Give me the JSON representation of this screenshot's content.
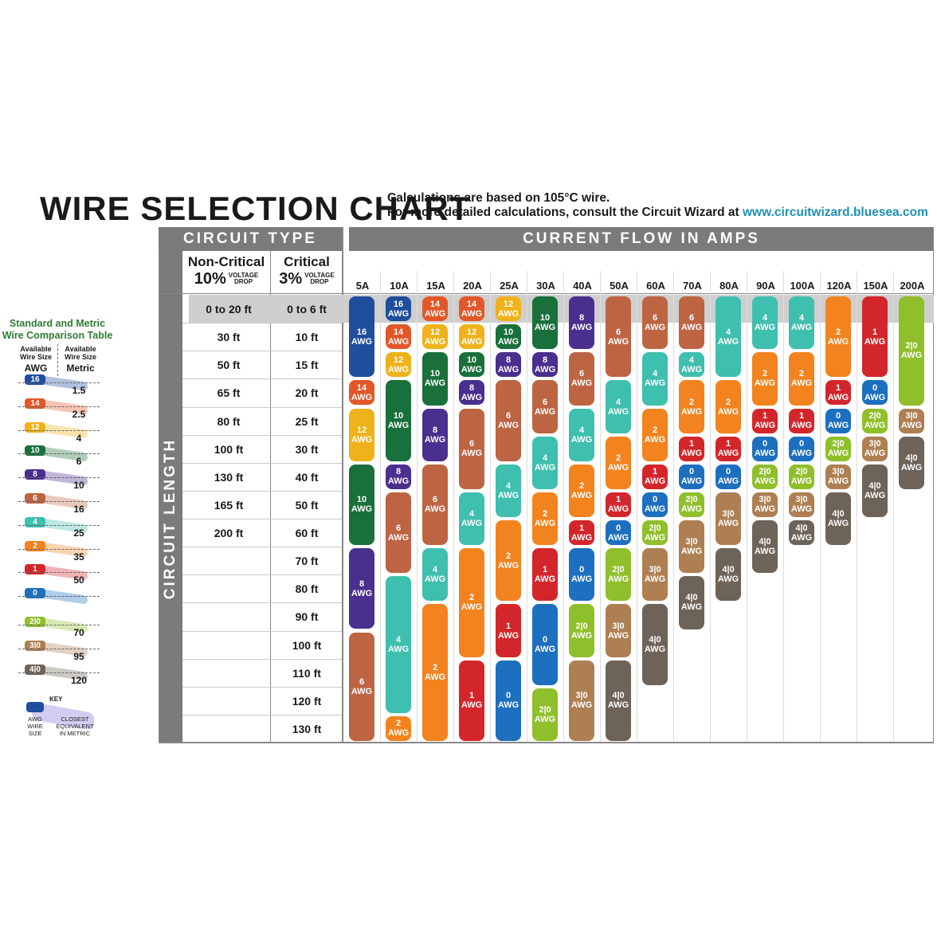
{
  "header": {
    "title": "WIRE SELECTION CHART",
    "note_line1": "Calculations are based on 105°C wire.",
    "note_line2_prefix": "For more detailed calculations, consult the Circuit Wizard at ",
    "note_url": "www.circuitwizard.bluesea.com"
  },
  "sections": {
    "circuit_type": "CIRCUIT TYPE",
    "current_flow": "CURRENT FLOW IN AMPS",
    "circuit_length": "CIRCUIT LENGTH"
  },
  "circuit_types": {
    "non_critical": {
      "name": "Non-Critical",
      "pct": "10%",
      "vd1": "VOLTAGE",
      "vd2": "DROP"
    },
    "critical": {
      "name": "Critical",
      "pct": "3%",
      "vd1": "VOLTAGE",
      "vd2": "DROP"
    }
  },
  "comparison_table": {
    "title1": "Standard and Metric",
    "title2": "Wire Comparison Table",
    "col1_sub1": "Available",
    "col1_sub2": "Wire Size",
    "col1_head": "AWG",
    "col2_sub1": "Available",
    "col2_sub2": "Wire Size",
    "col2_head": "Metric",
    "rows": [
      {
        "awg": "16",
        "metric": "1.5"
      },
      {
        "awg": "14",
        "metric": "2.5"
      },
      {
        "awg": "12",
        "metric": "4"
      },
      {
        "awg": "10",
        "metric": "6"
      },
      {
        "awg": "8",
        "metric": "10"
      },
      {
        "awg": "6",
        "metric": "16"
      },
      {
        "awg": "4",
        "metric": "25"
      },
      {
        "awg": "2",
        "metric": "35"
      },
      {
        "awg": "1",
        "metric": "50"
      },
      {
        "awg": "0",
        "metric": ""
      },
      {
        "awg": "2|0",
        "metric": "70"
      },
      {
        "awg": "3|0",
        "metric": "95"
      },
      {
        "awg": "4|0",
        "metric": "120"
      }
    ],
    "key": {
      "title": "KEY",
      "awg1": "AWG",
      "awg2": "WIRE",
      "awg3": "SIZE",
      "met1": "CLOSEST",
      "met2": "EQUIVALENT",
      "met3": "IN METRIC"
    }
  },
  "colors": {
    "16": "#1f4e9c",
    "14": "#e2572a",
    "12": "#efb21a",
    "10": "#19703a",
    "8": "#4a2f8f",
    "6": "#bd6443",
    "4": "#3fbfae",
    "2": "#f2831e",
    "1": "#d3262b",
    "0": "#1d6fbf",
    "2|0": "#8fbf2a",
    "3|0": "#ad7f52",
    "4|0": "#6d6358"
  },
  "chart_data": {
    "type": "table",
    "title": "WIRE SELECTION CHART",
    "amps": [
      "5A",
      "10A",
      "15A",
      "20A",
      "25A",
      "30A",
      "40A",
      "50A",
      "60A",
      "70A",
      "80A",
      "90A",
      "100A",
      "120A",
      "150A",
      "200A"
    ],
    "non_critical_lengths": [
      "0 to 20 ft",
      "30 ft",
      "50 ft",
      "65 ft",
      "80 ft",
      "100 ft",
      "130 ft",
      "165 ft",
      "200 ft"
    ],
    "critical_lengths": [
      "0 to 6 ft",
      "10 ft",
      "15 ft",
      "20 ft",
      "25 ft",
      "30 ft",
      "40 ft",
      "50 ft",
      "60 ft",
      "70 ft",
      "80 ft",
      "90 ft",
      "100 ft",
      "110 ft",
      "120 ft",
      "130 ft"
    ],
    "unit": "AWG",
    "columns": [
      [
        {
          "awg": "16",
          "from": 0,
          "to": 2
        },
        {
          "awg": "14",
          "from": 3,
          "to": 3
        },
        {
          "awg": "12",
          "from": 4,
          "to": 5
        },
        {
          "awg": "10",
          "from": 6,
          "to": 8
        },
        {
          "awg": "8",
          "from": 9,
          "to": 11
        },
        {
          "awg": "6",
          "from": 12,
          "to": 15
        }
      ],
      [
        {
          "awg": "16",
          "from": 0,
          "to": 0
        },
        {
          "awg": "14",
          "from": 1,
          "to": 1
        },
        {
          "awg": "12",
          "from": 2,
          "to": 2
        },
        {
          "awg": "10",
          "from": 3,
          "to": 5
        },
        {
          "awg": "8",
          "from": 6,
          "to": 6
        },
        {
          "awg": "6",
          "from": 7,
          "to": 9
        },
        {
          "awg": "4",
          "from": 10,
          "to": 14
        },
        {
          "awg": "2",
          "from": 15,
          "to": 15
        }
      ],
      [
        {
          "awg": "14",
          "from": 0,
          "to": 0
        },
        {
          "awg": "12",
          "from": 1,
          "to": 1
        },
        {
          "awg": "10",
          "from": 2,
          "to": 3
        },
        {
          "awg": "8",
          "from": 4,
          "to": 5
        },
        {
          "awg": "6",
          "from": 6,
          "to": 8
        },
        {
          "awg": "4",
          "from": 9,
          "to": 10
        },
        {
          "awg": "2",
          "from": 11,
          "to": 15
        }
      ],
      [
        {
          "awg": "14",
          "from": 0,
          "to": 0
        },
        {
          "awg": "12",
          "from": 1,
          "to": 1
        },
        {
          "awg": "10",
          "from": 2,
          "to": 2
        },
        {
          "awg": "8",
          "from": 3,
          "to": 3
        },
        {
          "awg": "6",
          "from": 4,
          "to": 6
        },
        {
          "awg": "4",
          "from": 7,
          "to": 8
        },
        {
          "awg": "2",
          "from": 9,
          "to": 12
        },
        {
          "awg": "1",
          "from": 13,
          "to": 15
        }
      ],
      [
        {
          "awg": "12",
          "from": 0,
          "to": 0
        },
        {
          "awg": "10",
          "from": 1,
          "to": 1
        },
        {
          "awg": "8",
          "from": 2,
          "to": 2
        },
        {
          "awg": "6",
          "from": 3,
          "to": 5
        },
        {
          "awg": "4",
          "from": 6,
          "to": 7
        },
        {
          "awg": "2",
          "from": 8,
          "to": 10
        },
        {
          "awg": "1",
          "from": 11,
          "to": 12
        },
        {
          "awg": "0",
          "from": 13,
          "to": 15
        }
      ],
      [
        {
          "awg": "10",
          "from": 0,
          "to": 1
        },
        {
          "awg": "8",
          "from": 2,
          "to": 2
        },
        {
          "awg": "6",
          "from": 3,
          "to": 4
        },
        {
          "awg": "4",
          "from": 5,
          "to": 6
        },
        {
          "awg": "2",
          "from": 7,
          "to": 8
        },
        {
          "awg": "1",
          "from": 9,
          "to": 10
        },
        {
          "awg": "0",
          "from": 11,
          "to": 13
        },
        {
          "awg": "2|0",
          "from": 14,
          "to": 15
        }
      ],
      [
        {
          "awg": "8",
          "from": 0,
          "to": 1
        },
        {
          "awg": "6",
          "from": 2,
          "to": 3
        },
        {
          "awg": "4",
          "from": 4,
          "to": 5
        },
        {
          "awg": "2",
          "from": 6,
          "to": 7
        },
        {
          "awg": "1",
          "from": 8,
          "to": 8
        },
        {
          "awg": "0",
          "from": 9,
          "to": 10
        },
        {
          "awg": "2|0",
          "from": 11,
          "to": 12
        },
        {
          "awg": "3|0",
          "from": 13,
          "to": 15
        }
      ],
      [
        {
          "awg": "6",
          "from": 0,
          "to": 2
        },
        {
          "awg": "4",
          "from": 3,
          "to": 4
        },
        {
          "awg": "2",
          "from": 5,
          "to": 6
        },
        {
          "awg": "1",
          "from": 7,
          "to": 7
        },
        {
          "awg": "0",
          "from": 8,
          "to": 8
        },
        {
          "awg": "2|0",
          "from": 9,
          "to": 10
        },
        {
          "awg": "3|0",
          "from": 11,
          "to": 12
        },
        {
          "awg": "4|0",
          "from": 13,
          "to": 15
        }
      ],
      [
        {
          "awg": "6",
          "from": 0,
          "to": 1
        },
        {
          "awg": "4",
          "from": 2,
          "to": 3
        },
        {
          "awg": "2",
          "from": 4,
          "to": 5
        },
        {
          "awg": "1",
          "from": 6,
          "to": 6
        },
        {
          "awg": "0",
          "from": 7,
          "to": 7
        },
        {
          "awg": "2|0",
          "from": 8,
          "to": 8
        },
        {
          "awg": "3|0",
          "from": 9,
          "to": 10
        },
        {
          "awg": "4|0",
          "from": 11,
          "to": 13
        }
      ],
      [
        {
          "awg": "6",
          "from": 0,
          "to": 1
        },
        {
          "awg": "4",
          "from": 2,
          "to": 2
        },
        {
          "awg": "2",
          "from": 3,
          "to": 4
        },
        {
          "awg": "1",
          "from": 5,
          "to": 5
        },
        {
          "awg": "0",
          "from": 6,
          "to": 6
        },
        {
          "awg": "2|0",
          "from": 7,
          "to": 7
        },
        {
          "awg": "3|0",
          "from": 8,
          "to": 9
        },
        {
          "awg": "4|0",
          "from": 10,
          "to": 11
        }
      ],
      [
        {
          "awg": "4",
          "from": 0,
          "to": 2
        },
        {
          "awg": "2",
          "from": 3,
          "to": 4
        },
        {
          "awg": "1",
          "from": 5,
          "to": 5
        },
        {
          "awg": "0",
          "from": 6,
          "to": 6
        },
        {
          "awg": "3|0",
          "from": 7,
          "to": 8
        },
        {
          "awg": "4|0",
          "from": 9,
          "to": 10
        }
      ],
      [
        {
          "awg": "4",
          "from": 0,
          "to": 1
        },
        {
          "awg": "2",
          "from": 2,
          "to": 3
        },
        {
          "awg": "1",
          "from": 4,
          "to": 4
        },
        {
          "awg": "0",
          "from": 5,
          "to": 5
        },
        {
          "awg": "2|0",
          "from": 6,
          "to": 6
        },
        {
          "awg": "3|0",
          "from": 7,
          "to": 7
        },
        {
          "awg": "4|0",
          "from": 8,
          "to": 9
        }
      ],
      [
        {
          "awg": "4",
          "from": 0,
          "to": 1
        },
        {
          "awg": "2",
          "from": 2,
          "to": 3
        },
        {
          "awg": "1",
          "from": 4,
          "to": 4
        },
        {
          "awg": "0",
          "from": 5,
          "to": 5
        },
        {
          "awg": "2|0",
          "from": 6,
          "to": 6
        },
        {
          "awg": "3|0",
          "from": 7,
          "to": 7
        },
        {
          "awg": "4|0",
          "from": 8,
          "to": 8
        }
      ],
      [
        {
          "awg": "2",
          "from": 0,
          "to": 2
        },
        {
          "awg": "1",
          "from": 3,
          "to": 3
        },
        {
          "awg": "0",
          "from": 4,
          "to": 4
        },
        {
          "awg": "2|0",
          "from": 5,
          "to": 5
        },
        {
          "awg": "3|0",
          "from": 6,
          "to": 6
        },
        {
          "awg": "4|0",
          "from": 7,
          "to": 8
        }
      ],
      [
        {
          "awg": "1",
          "from": 0,
          "to": 2
        },
        {
          "awg": "0",
          "from": 3,
          "to": 3
        },
        {
          "awg": "2|0",
          "from": 4,
          "to": 4
        },
        {
          "awg": "3|0",
          "from": 5,
          "to": 5
        },
        {
          "awg": "4|0",
          "from": 6,
          "to": 7
        }
      ],
      [
        {
          "awg": "2|0",
          "from": 0,
          "to": 3
        },
        {
          "awg": "3|0",
          "from": 4,
          "to": 4
        },
        {
          "awg": "4|0",
          "from": 5,
          "to": 6
        }
      ]
    ]
  }
}
